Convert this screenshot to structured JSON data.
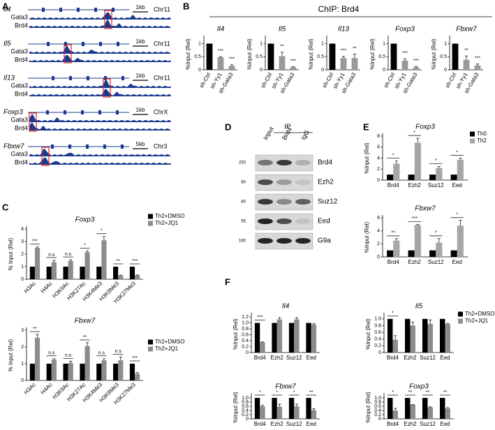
{
  "panel_labels": [
    "A",
    "B",
    "C",
    "D",
    "E",
    "F"
  ],
  "panel_b_header": "ChIP: Brd4",
  "tracks": [
    {
      "gene": "Il4",
      "scale": "1kb",
      "chrom": "Chr11",
      "rows": [
        "Gata3",
        "Brd4"
      ]
    },
    {
      "gene": "Il5",
      "scale": "1kb",
      "chrom": "Chr11",
      "rows": [
        "Gata3",
        "Brd4"
      ]
    },
    {
      "gene": "Il13",
      "scale": "1kb",
      "chrom": "Chr11",
      "rows": [
        "Gata3",
        "Brd4"
      ]
    },
    {
      "gene": "Foxp3",
      "scale": "1kb",
      "chrom": "ChrX",
      "rows": [
        "Gata3",
        "Brd4"
      ]
    },
    {
      "gene": "Fbxw7",
      "scale": "5kb",
      "chrom": "Chr3",
      "rows": [
        "Gata3",
        "Brd4"
      ]
    }
  ],
  "blot": {
    "title": "IP",
    "lanes": [
      "Input",
      "Brd4",
      "IgG"
    ],
    "rows": [
      {
        "marker": 250,
        "protein": "Brd4"
      },
      {
        "marker": 80,
        "protein": "Ezh2"
      },
      {
        "marker": 80,
        "protein": "Suz12"
      },
      {
        "marker": 55,
        "protein": "Eed"
      },
      {
        "marker": 160,
        "protein": "G9a"
      }
    ]
  },
  "chart_data": [
    {
      "type": "bar",
      "title": "Il4",
      "ylabel": "%Input (Rel)",
      "categories": [
        "sh-Ctrl",
        "sh-Yy1",
        "sh-Gata3"
      ],
      "values": [
        1,
        0.48,
        0.15
      ],
      "errors": [
        null,
        0.02,
        0.04
      ],
      "bar_colors": [
        "#000000",
        "#999999",
        "#999999"
      ],
      "sig": [
        null,
        "***",
        "***"
      ],
      "ylim": [
        0,
        1.2
      ],
      "yticks": [
        0,
        0.5,
        1
      ]
    },
    {
      "type": "bar",
      "title": "Il5",
      "ylabel": "%Input (Rel)",
      "categories": [
        "sh-Ctrl",
        "sh-Yy1",
        "sh-Gata3"
      ],
      "values": [
        1,
        0.52,
        0.1
      ],
      "errors": [
        null,
        0.15,
        0.02
      ],
      "bar_colors": [
        "#000000",
        "#999999",
        "#999999"
      ],
      "sig": [
        null,
        "**",
        "***"
      ],
      "ylim": [
        0,
        1.2
      ],
      "yticks": [
        0,
        0.5,
        1
      ]
    },
    {
      "type": "bar",
      "title": "Il13",
      "ylabel": "%Input (Rel)",
      "categories": [
        "sh-Ctrl",
        "sh-Yy1",
        "sh-Gata3"
      ],
      "values": [
        1,
        0.45,
        0.45
      ],
      "errors": [
        null,
        0.06,
        0.15
      ],
      "bar_colors": [
        "#000000",
        "#999999",
        "#999999"
      ],
      "sig": [
        null,
        "***",
        "**"
      ],
      "ylim": [
        0,
        1.2
      ],
      "yticks": [
        0,
        0.5,
        1
      ]
    },
    {
      "type": "bar",
      "title": "Foxp3",
      "ylabel": "%Input (Rel)",
      "categories": [
        "sh-Ctrl",
        "sh-Yy1",
        "sh-Gata3"
      ],
      "values": [
        1,
        0.35,
        0.1
      ],
      "errors": [
        null,
        0.07,
        0.03
      ],
      "bar_colors": [
        "#000000",
        "#999999",
        "#999999"
      ],
      "sig": [
        null,
        "***",
        "***"
      ],
      "ylim": [
        0,
        1.2
      ],
      "yticks": [
        0,
        0.5,
        1
      ]
    },
    {
      "type": "bar",
      "title": "Fbxw7",
      "ylabel": "%Input (Rel)",
      "categories": [
        "sh-Ctrl",
        "sh-Yy1",
        "sh-Gata3"
      ],
      "values": [
        1,
        0.38,
        0.17
      ],
      "errors": [
        null,
        0.15,
        0.05
      ],
      "bar_colors": [
        "#000000",
        "#999999",
        "#999999"
      ],
      "sig": [
        null,
        "**",
        "***"
      ],
      "ylim": [
        0,
        1.2
      ],
      "yticks": [
        0,
        0.5,
        1
      ]
    },
    {
      "type": "bar",
      "title": "Foxp3",
      "ylabel": "% Input (Rel)",
      "categories": [
        "H3Ac",
        "H4Ac",
        "H3K9Ac",
        "H3K27Ac",
        "H3K4Me3",
        "H3K9Me3",
        "H3K27Me3"
      ],
      "series": [
        {
          "name": "Th2+DMSO",
          "color": "#000000",
          "values": [
            1,
            1,
            1,
            1,
            1,
            1,
            1
          ]
        },
        {
          "name": "Th2+JQ1",
          "color": "#8c8c8c",
          "values": [
            2.5,
            1.35,
            1.45,
            2.15,
            3.1,
            0.3,
            0.32
          ],
          "errors": [
            0.07,
            0.15,
            0.1,
            0.1,
            0.3,
            0.03,
            0.02
          ]
        }
      ],
      "sig": [
        "***",
        "n.s",
        "n.s",
        "*",
        "*",
        "**",
        "***"
      ],
      "ylim": [
        0,
        4
      ],
      "yticks": [
        0,
        1,
        2,
        3,
        4
      ]
    },
    {
      "type": "bar",
      "title": "Fbxw7",
      "ylabel": "% Input (Rel)",
      "categories": [
        "H3Ac",
        "H4Ac",
        "H3K9Ac",
        "H3K27Ac",
        "H3K4Me3",
        "H3K9Me3",
        "H3K27Me3"
      ],
      "series": [
        {
          "name": "Th2+DMSO",
          "color": "#000000",
          "values": [
            1,
            1,
            1,
            1,
            1,
            1,
            1
          ]
        },
        {
          "name": "Th2+JQ1",
          "color": "#8c8c8c",
          "values": [
            2.55,
            1.25,
            1.05,
            2.05,
            1.2,
            1.2,
            0.4
          ],
          "errors": [
            0.2,
            0.05,
            0.1,
            0.2,
            0.1,
            0.2,
            0.07
          ]
        }
      ],
      "sig": [
        "**",
        "n.s",
        "n.s",
        "**",
        "n.s",
        "n.s",
        "***"
      ],
      "ylim": [
        0,
        3
      ],
      "yticks": [
        0,
        1,
        2,
        3
      ]
    },
    {
      "type": "bar",
      "title": "Foxp3",
      "ylabel": "%Input (Rel)",
      "categories": [
        "Brd4",
        "Ezh2",
        "Suz12",
        "Eed"
      ],
      "series": [
        {
          "name": "Th0",
          "color": "#000000",
          "values": [
            1,
            1,
            1,
            1
          ]
        },
        {
          "name": "Th2",
          "color": "#a6a6a6",
          "values": [
            3,
            6.8,
            2.2,
            3.7
          ],
          "errors": [
            0.5,
            0.8,
            0.3,
            0.3
          ]
        }
      ],
      "sig": [
        "*",
        "*",
        "*",
        "*"
      ],
      "ylim": [
        0,
        8
      ],
      "yticks": [
        0,
        2,
        4,
        6,
        8
      ]
    },
    {
      "type": "bar",
      "title": "Fbxw7",
      "ylabel": "%Input (Rel)",
      "categories": [
        "Brd4",
        "Ezh2",
        "Suz12",
        "Eed"
      ],
      "series": [
        {
          "color": "#000000",
          "values": [
            1,
            1,
            1,
            1
          ]
        },
        {
          "color": "#a6a6a6",
          "values": [
            2.5,
            4.9,
            2.2,
            4.8
          ],
          "errors": [
            0.3,
            0.1,
            0.6,
            0.8
          ]
        }
      ],
      "sig": [
        "**",
        "***",
        "*",
        "*"
      ],
      "ylim": [
        0,
        6
      ],
      "yticks": [
        0,
        2,
        4,
        6
      ]
    },
    {
      "type": "bar",
      "title": "Il4",
      "ylabel": "%Input (Rel)",
      "categories": [
        "Brd4",
        "Ezh2",
        "Suz12",
        "Eed"
      ],
      "series": [
        {
          "color": "#000000",
          "values": [
            1,
            1,
            1,
            1
          ]
        },
        {
          "color": "#8c8c8c",
          "values": [
            0.35,
            1.12,
            1.12,
            0.95
          ],
          "errors": [
            0.01,
            0.06,
            0.06,
            0.03
          ]
        }
      ],
      "sig": [
        "***",
        null,
        null,
        null
      ],
      "ylim": [
        0,
        1.25
      ],
      "yticks": [
        0,
        0.2,
        0.4,
        0.6,
        0.8,
        {
          "value": 1,
          "label": "1.0"
        },
        1.2
      ]
    },
    {
      "type": "bar",
      "title": "Il5",
      "ylabel": "%Input (Rel)",
      "categories": [
        "Brd4",
        "Ezh2",
        "Suz12",
        "Eed"
      ],
      "series": [
        {
          "name": "Th2+DMSO",
          "color": "#000000",
          "values": [
            1,
            1,
            1,
            1
          ]
        },
        {
          "name": "Th2+JQ1",
          "color": "#8c8c8c",
          "values": [
            0.38,
            0.8,
            0.85,
            0.85
          ],
          "errors": [
            0.12,
            0.1,
            0.12,
            0.02
          ]
        }
      ],
      "sig": [
        "*",
        null,
        null,
        null
      ],
      "ylim": [
        0,
        1.1
      ],
      "yticks": [
        0,
        0.2,
        0.4,
        0.6,
        0.8,
        {
          "value": 1,
          "label": "1.0"
        }
      ]
    },
    {
      "type": "bar",
      "title": "Fbxw7",
      "ylabel": "%Input (Rel)",
      "categories": [
        "Brd4",
        "Ezh2",
        "Suz12",
        "Eed"
      ],
      "series": [
        {
          "color": "#000000",
          "values": [
            1,
            1,
            1,
            1
          ]
        },
        {
          "color": "#8c8c8c",
          "values": [
            0.6,
            0.58,
            0.6,
            0.42
          ],
          "errors": [
            0.05,
            0.12,
            0.1,
            0.06
          ]
        }
      ],
      "sig": [
        "*",
        "*",
        "*",
        "**"
      ],
      "ylim": [
        0,
        1.1
      ],
      "yticks": [
        0,
        0.2,
        0.4,
        0.6,
        0.8,
        {
          "value": 1,
          "label": "1.0"
        }
      ]
    },
    {
      "type": "bar",
      "title": "Foxp3",
      "ylabel": "%Input (Rel)",
      "categories": [
        "Brd4",
        "Ezh2",
        "Suz12",
        "Eed"
      ],
      "series": [
        {
          "color": "#000000",
          "values": [
            1,
            1,
            1,
            1
          ]
        },
        {
          "color": "#8c8c8c",
          "values": [
            0.4,
            0.68,
            0.55,
            0.5
          ],
          "errors": [
            0.1,
            0.01,
            0.02,
            0.04
          ]
        }
      ],
      "sig": [
        "*",
        "**",
        "**",
        "**"
      ],
      "ylim": [
        0,
        1.1
      ],
      "yticks": [
        0,
        0.2,
        0.4,
        0.6,
        0.8,
        {
          "value": 1,
          "label": "1.0"
        }
      ]
    }
  ]
}
